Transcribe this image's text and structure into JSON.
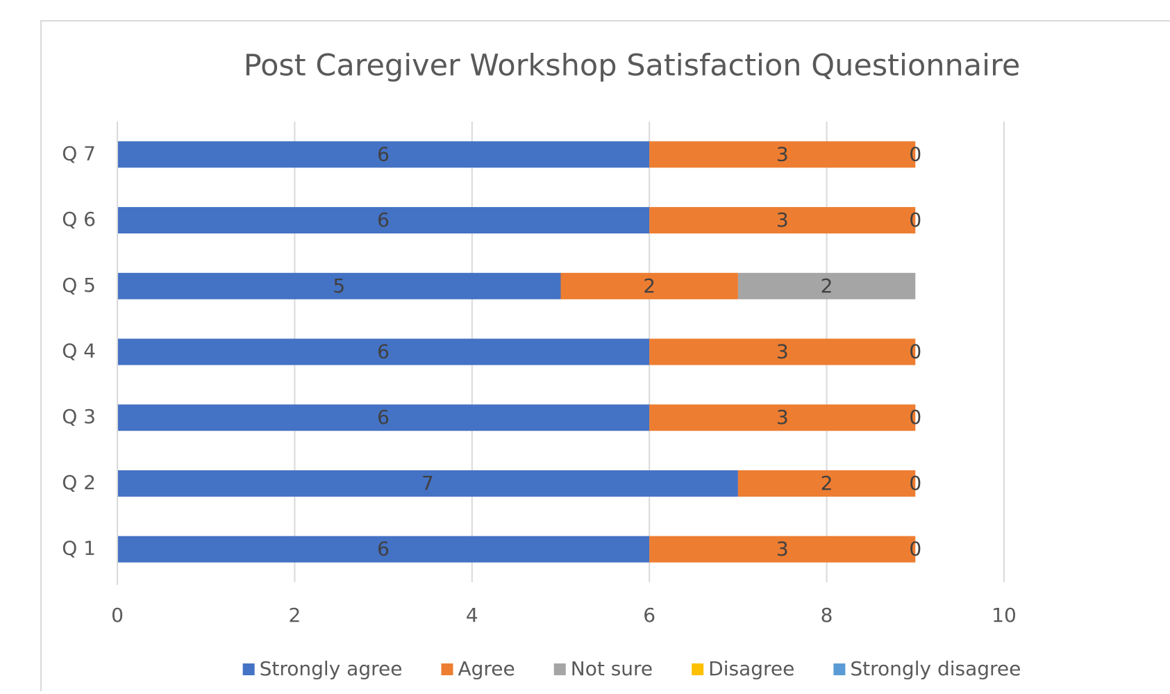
{
  "chart_data": {
    "type": "stacked_barh",
    "title": "Post Caregiver Workshop Satisfaction Questionnaire",
    "categories": [
      "Q 1",
      "Q 2",
      "Q 3",
      "Q 4",
      "Q 5",
      "Q 6",
      "Q 7"
    ],
    "series": [
      {
        "name": "Strongly agree",
        "color": "#4472c4",
        "values": [
          6,
          7,
          6,
          6,
          5,
          6,
          6
        ]
      },
      {
        "name": "Agree",
        "color": "#ed7d31",
        "values": [
          3,
          2,
          3,
          3,
          2,
          3,
          3
        ]
      },
      {
        "name": "Not sure",
        "color": "#a5a5a5",
        "values": [
          0,
          0,
          0,
          0,
          2,
          0,
          0
        ]
      },
      {
        "name": "Disagree",
        "color": "#ffc000",
        "values": [
          null,
          null,
          null,
          null,
          null,
          null,
          null
        ]
      },
      {
        "name": "Strongly disagree",
        "color": "#5b9bd5",
        "values": [
          null,
          null,
          null,
          null,
          null,
          null,
          null
        ]
      }
    ],
    "xlim": [
      0,
      10
    ],
    "xticks": [
      0,
      2,
      4,
      6,
      8,
      10
    ],
    "grid": true,
    "legend": "bottom"
  }
}
